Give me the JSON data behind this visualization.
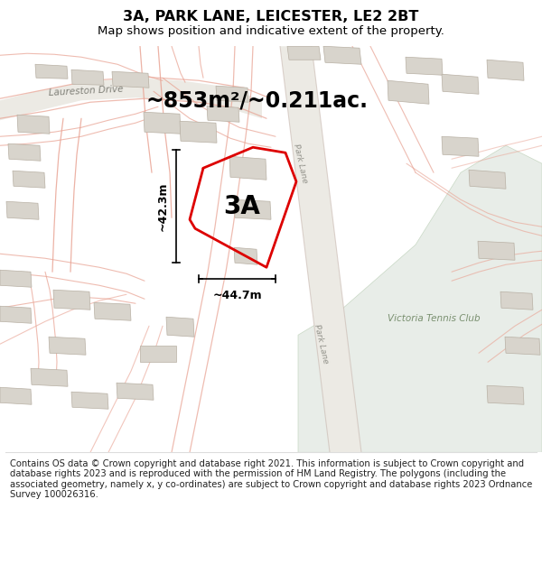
{
  "title": "3A, PARK LANE, LEICESTER, LE2 2BT",
  "subtitle": "Map shows position and indicative extent of the property.",
  "area_label": "~853m²/~0.211ac.",
  "property_label": "3A",
  "dim_vertical": "~42.3m",
  "dim_horizontal": "~44.7m",
  "tennis_club_label": "Victoria Tennis Club",
  "laureston_label": "Laureston Drive",
  "park_lane_label": "Park Lane",
  "copyright_text": "Contains OS data © Crown copyright and database right 2021. This information is subject to Crown copyright and database rights 2023 and is reproduced with the permission of HM Land Registry. The polygons (including the associated geometry, namely x, y co-ordinates) are subject to Crown copyright and database rights 2023 Ordnance Survey 100026316.",
  "map_bg": "#f5f3f0",
  "tennis_club_bg": "#e8ede8",
  "road_fill": "#eeebe6",
  "building_fc": "#d8d4cc",
  "building_ec": "#b8b0a4",
  "road_line_color": "#e8a090",
  "property_color": "#dd0000",
  "title_fontsize": 11.5,
  "subtitle_fontsize": 9.5,
  "area_fontsize": 17,
  "property_fontsize": 20,
  "dim_fontsize": 9,
  "copyright_fontsize": 7.2,
  "label_fontsize": 7.5
}
